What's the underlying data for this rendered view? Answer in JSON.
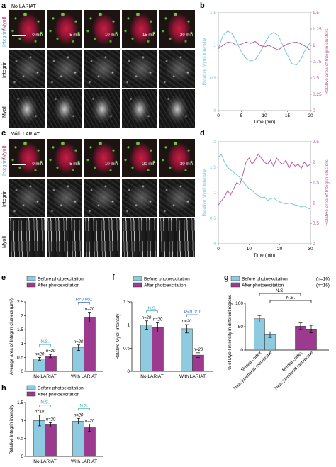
{
  "panel_labels": {
    "a": "a",
    "b": "b",
    "c": "c",
    "d": "d",
    "e": "e",
    "f": "f",
    "g": "g",
    "h": "h"
  },
  "panel_a": {
    "condition": "No LARIAT",
    "channel_integrin": "Integrin",
    "channel_sep": "/",
    "channel_myoii": "MyoII",
    "row_integrin": "Integrin",
    "row_myoii": "MyoII",
    "times": [
      "0 min",
      "5 min",
      "10 min",
      "15 min",
      "20 min"
    ],
    "colors": {
      "integrin": "#4fb3c9",
      "myoii": "#c0336a"
    }
  },
  "panel_c": {
    "condition": "With LARIAT",
    "channel_integrin": "Integrin",
    "channel_sep": "/",
    "channel_myoii": "MyoII",
    "row_integrin": "Integrin",
    "row_myoii": "MyoII",
    "times": [
      "0 min",
      "5 min",
      "10 min",
      "20 min",
      "30 min"
    ]
  },
  "chart_data": [
    {
      "panel": "b",
      "type": "line",
      "xlabel": "Time (min)",
      "ylabel_left": "Relative MyoII intensity",
      "ylabel_right": "Relative area of Integrin clusters",
      "xlim": [
        0,
        20
      ],
      "xticks": [
        "0",
        "5",
        "10",
        "15",
        "20"
      ],
      "ylim_left": [
        0,
        1.5
      ],
      "yticks_left": [
        "0",
        "0.5",
        "1",
        "1.5"
      ],
      "ylim_right": [
        0,
        1.5
      ],
      "yticks_right": [
        "0",
        "0.25",
        "0.5",
        "0.75",
        "1",
        "1.25",
        "1.5"
      ],
      "series": [
        {
          "axis": "left",
          "color": "#7cc3dc",
          "x": [
            0,
            1,
            2,
            3,
            4,
            5,
            6,
            7,
            8,
            9,
            10,
            11,
            12,
            13,
            14,
            15,
            16,
            17,
            18,
            19,
            20
          ],
          "y": [
            0.95,
            1.15,
            1.22,
            1.18,
            1.05,
            0.9,
            0.8,
            0.76,
            0.78,
            0.88,
            1.02,
            1.15,
            1.2,
            1.15,
            1.0,
            0.85,
            0.72,
            0.7,
            0.8,
            0.95,
            1.05
          ]
        },
        {
          "axis": "right",
          "color": "#b45fa0",
          "x": [
            0,
            1,
            2,
            3,
            4,
            5,
            6,
            7,
            8,
            9,
            10,
            11,
            12,
            13,
            14,
            15,
            16,
            17,
            18,
            19,
            20
          ],
          "y": [
            0.95,
            1.0,
            1.05,
            1.04,
            1.0,
            1.02,
            1.05,
            1.03,
            1.06,
            1.0,
            0.98,
            1.0,
            0.96,
            0.93,
            0.98,
            1.02,
            1.04,
            1.05,
            1.02,
            0.98,
            0.92
          ]
        }
      ]
    },
    {
      "panel": "d",
      "type": "line",
      "xlabel": "Time (min)",
      "ylabel_left": "Relative MyoII intensity",
      "ylabel_right": "Relative area of Integrin clusters",
      "xlim": [
        0,
        30
      ],
      "xticks": [
        "0",
        "10",
        "20",
        "30"
      ],
      "ylim_left": [
        0,
        2
      ],
      "yticks_left": [
        "0",
        "0.5",
        "1",
        "1.5",
        "2"
      ],
      "ylim_right": [
        0,
        2.5
      ],
      "yticks_right": [
        "0",
        "0.5",
        "1",
        "1.5",
        "2",
        "2.5"
      ],
      "series": [
        {
          "axis": "left",
          "color": "#7cc3dc",
          "x": [
            0,
            1,
            2,
            3,
            4,
            5,
            6,
            7,
            8,
            9,
            10,
            11,
            12,
            13,
            14,
            15,
            16,
            17,
            18,
            19,
            20,
            21,
            22,
            23,
            24,
            25,
            26,
            27,
            28,
            29,
            30
          ],
          "y": [
            1.7,
            1.75,
            1.6,
            1.5,
            1.45,
            1.4,
            1.35,
            1.3,
            1.22,
            1.15,
            1.08,
            1.05,
            0.98,
            0.95,
            0.9,
            0.92,
            0.85,
            0.88,
            0.9,
            0.85,
            0.82,
            0.8,
            0.78,
            0.8,
            0.78,
            0.76,
            0.75,
            0.72,
            0.74,
            0.7,
            0.68
          ]
        },
        {
          "axis": "right",
          "color": "#b45fa0",
          "x": [
            0,
            1,
            2,
            3,
            4,
            5,
            6,
            7,
            8,
            9,
            10,
            11,
            12,
            13,
            14,
            15,
            16,
            17,
            18,
            19,
            20,
            21,
            22,
            23,
            24,
            25,
            26,
            27,
            28,
            29,
            30
          ],
          "y": [
            0.95,
            1.05,
            1.15,
            1.3,
            1.2,
            1.35,
            1.5,
            1.45,
            1.7,
            2.0,
            2.1,
            1.95,
            2.05,
            2.2,
            2.1,
            2.0,
            1.95,
            2.05,
            1.9,
            2.1,
            2.0,
            1.95,
            2.05,
            1.85,
            2.0,
            1.9,
            1.95,
            1.85,
            2.0,
            1.9,
            1.95
          ]
        }
      ]
    },
    {
      "panel": "e",
      "type": "bar",
      "legend": [
        "Before photoexcitation",
        "After photoexcitation"
      ],
      "ylabel": "Average area of Integrin clusters (μm²)",
      "categories": [
        "No LARIAT",
        "With LARIAT"
      ],
      "ylim": [
        0,
        2.5
      ],
      "yticks": [
        "0",
        "0.5",
        "1",
        "1.5",
        "2",
        "2.5"
      ],
      "series": [
        {
          "name": "Before photoexcitation",
          "values": [
            0.45,
            0.85
          ],
          "errors": [
            0.05,
            0.1
          ]
        },
        {
          "name": "After photoexcitation",
          "values": [
            0.55,
            1.95
          ],
          "errors": [
            0.06,
            0.18
          ]
        }
      ],
      "n_labels": [
        [
          "n=20",
          "n=20"
        ],
        [
          "n=20",
          "n=20"
        ]
      ],
      "sig": [
        "N.S.",
        "P<0.001"
      ]
    },
    {
      "panel": "f",
      "type": "bar",
      "legend": [
        "Before photoexcitation",
        "After photoexcitation"
      ],
      "ylabel": "Relative MyoII intensity",
      "categories": [
        "No LARIAT",
        "With LARIAT"
      ],
      "ylim": [
        0,
        1.5
      ],
      "yticks": [
        "0",
        "0.5",
        "1",
        "1.5"
      ],
      "series": [
        {
          "name": "Before photoexcitation",
          "values": [
            1.0,
            0.92
          ],
          "errors": [
            0.09,
            0.09
          ]
        },
        {
          "name": "After photoexcitation",
          "values": [
            0.95,
            0.35
          ],
          "errors": [
            0.1,
            0.05
          ]
        }
      ],
      "n_labels": [
        [
          "n=20",
          "n=20"
        ],
        [
          "n=20",
          "n=20"
        ]
      ],
      "sig": [
        "N.S.",
        "P<0.001"
      ]
    },
    {
      "panel": "g",
      "type": "bar",
      "legend": [
        "Before photoexcitation",
        "After photoexcitation"
      ],
      "legend_n": [
        "(n=16)",
        "(n=16)"
      ],
      "ylabel": "% of MyoII intensity in different regions",
      "categories": [
        "Medial cortex",
        "Near junctional membrane",
        "Medial cortex",
        "Near junctional membrane"
      ],
      "ylim": [
        0,
        100
      ],
      "yticks": [
        "0",
        "50",
        "100"
      ],
      "values": [
        67,
        33,
        51,
        45
      ],
      "errors": [
        7,
        6,
        7,
        8
      ],
      "bar_series": [
        0,
        0,
        1,
        1
      ],
      "sig": [
        "N.S.",
        "N.S."
      ]
    },
    {
      "panel": "h",
      "type": "bar",
      "legend": [
        "Before photoexcitation",
        "After photoexcitation"
      ],
      "ylabel": "Relative Integrin intensity",
      "categories": [
        "No LARIAT",
        "With LARIAT"
      ],
      "ylim": [
        0,
        1.5
      ],
      "yticks": [
        "0",
        "0.5",
        "1",
        "1.5"
      ],
      "series": [
        {
          "name": "Before photoexcitation",
          "values": [
            1.0,
            0.98
          ],
          "errors": [
            0.15,
            0.08
          ]
        },
        {
          "name": "After photoexcitation",
          "values": [
            0.88,
            0.8
          ],
          "errors": [
            0.06,
            0.1
          ]
        }
      ],
      "n_labels": [
        [
          "n=18",
          "n=20"
        ],
        [
          "n=20",
          "n=20"
        ]
      ],
      "sig": [
        "N.S.",
        "N.S."
      ]
    }
  ],
  "colors": {
    "before": "#8fcbe0",
    "after": "#9b3a8e",
    "ns": "#3fa7a0",
    "pval": "#3a6fc0",
    "axis_left": "#7cc3dc",
    "axis_right": "#b45fa0"
  }
}
